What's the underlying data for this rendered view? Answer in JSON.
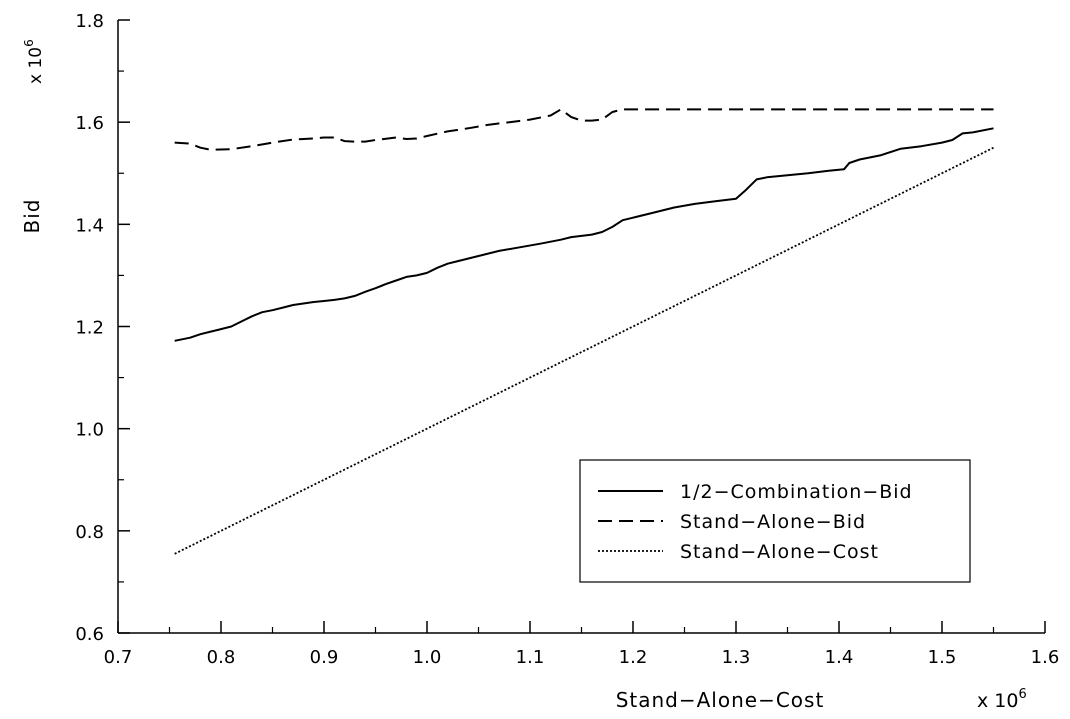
{
  "chart_data": {
    "type": "line",
    "title": "",
    "xlabel": "Stand−Alone−Cost",
    "ylabel": "Bid",
    "x_multiplier": {
      "base": "x 10",
      "exp": "6"
    },
    "y_multiplier": {
      "base": "x 10",
      "exp": "6"
    },
    "xlim": [
      0.7,
      1.6
    ],
    "ylim": [
      0.6,
      1.8
    ],
    "x_ticks": [
      0.7,
      0.8,
      0.9,
      1.0,
      1.1,
      1.2,
      1.3,
      1.4,
      1.5,
      1.6
    ],
    "x_tick_labels": [
      "0.7",
      "0.8",
      "0.9",
      "1.0",
      "1.1",
      "1.2",
      "1.3",
      "1.4",
      "1.5",
      "1.6"
    ],
    "y_ticks": [
      0.6,
      0.8,
      1.0,
      1.2,
      1.4,
      1.6,
      1.8
    ],
    "y_tick_labels": [
      "0.6",
      "0.8",
      "1.0",
      "1.2",
      "1.4",
      "1.6",
      "1.8"
    ],
    "grid": false,
    "legend_position": "bottom-right",
    "series": [
      {
        "name": "1/2−Combination−Bid",
        "style": "solid",
        "x": [
          0.755,
          0.77,
          0.78,
          0.79,
          0.8,
          0.81,
          0.82,
          0.83,
          0.84,
          0.85,
          0.86,
          0.87,
          0.88,
          0.89,
          0.9,
          0.91,
          0.92,
          0.93,
          0.94,
          0.95,
          0.96,
          0.97,
          0.98,
          0.99,
          1.0,
          1.01,
          1.02,
          1.03,
          1.05,
          1.07,
          1.09,
          1.11,
          1.13,
          1.14,
          1.16,
          1.17,
          1.18,
          1.19,
          1.2,
          1.22,
          1.24,
          1.26,
          1.28,
          1.3,
          1.31,
          1.32,
          1.33,
          1.35,
          1.37,
          1.39,
          1.405,
          1.41,
          1.42,
          1.44,
          1.46,
          1.48,
          1.5,
          1.51,
          1.52,
          1.53,
          1.55
        ],
        "y": [
          1.172,
          1.178,
          1.185,
          1.19,
          1.195,
          1.2,
          1.21,
          1.22,
          1.228,
          1.232,
          1.237,
          1.242,
          1.245,
          1.248,
          1.25,
          1.252,
          1.255,
          1.26,
          1.268,
          1.275,
          1.283,
          1.29,
          1.297,
          1.3,
          1.305,
          1.315,
          1.323,
          1.328,
          1.338,
          1.348,
          1.355,
          1.362,
          1.37,
          1.375,
          1.38,
          1.385,
          1.395,
          1.408,
          1.413,
          1.423,
          1.433,
          1.44,
          1.445,
          1.45,
          1.468,
          1.488,
          1.492,
          1.496,
          1.5,
          1.505,
          1.508,
          1.52,
          1.527,
          1.535,
          1.548,
          1.553,
          1.56,
          1.565,
          1.578,
          1.58,
          1.588
        ]
      },
      {
        "name": "Stand−Alone−Bid",
        "style": "dashed",
        "x": [
          0.755,
          0.77,
          0.78,
          0.79,
          0.81,
          0.83,
          0.85,
          0.87,
          0.89,
          0.9,
          0.91,
          0.92,
          0.93,
          0.94,
          0.95,
          0.97,
          0.98,
          0.99,
          1.0,
          1.02,
          1.04,
          1.06,
          1.08,
          1.1,
          1.12,
          1.13,
          1.14,
          1.15,
          1.16,
          1.17,
          1.18,
          1.19,
          1.25,
          1.3,
          1.4,
          1.5,
          1.55
        ],
        "y": [
          1.56,
          1.558,
          1.55,
          1.546,
          1.547,
          1.553,
          1.56,
          1.566,
          1.568,
          1.57,
          1.57,
          1.563,
          1.562,
          1.562,
          1.565,
          1.57,
          1.567,
          1.568,
          1.573,
          1.582,
          1.588,
          1.595,
          1.6,
          1.605,
          1.613,
          1.625,
          1.61,
          1.603,
          1.603,
          1.605,
          1.62,
          1.625,
          1.625,
          1.625,
          1.625,
          1.625,
          1.625
        ]
      },
      {
        "name": "Stand−Alone−Cost",
        "style": "dotted",
        "x": [
          0.755,
          1.55
        ],
        "y": [
          0.755,
          1.55
        ]
      }
    ]
  }
}
